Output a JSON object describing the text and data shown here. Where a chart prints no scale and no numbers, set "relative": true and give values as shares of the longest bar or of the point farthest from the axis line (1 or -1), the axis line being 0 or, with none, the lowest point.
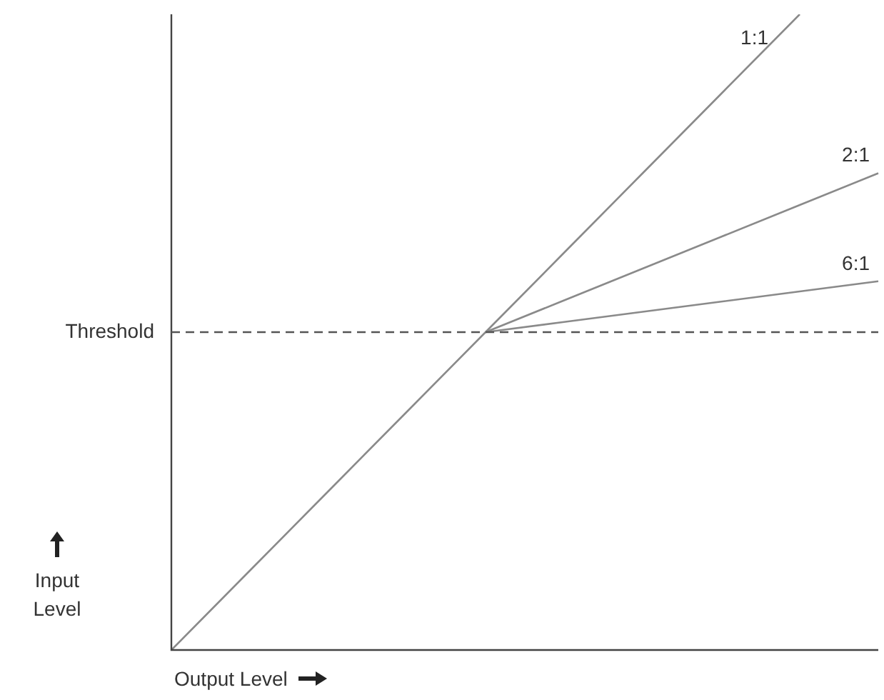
{
  "chart_data": {
    "type": "line",
    "relative": true,
    "xlabel": "Output Level",
    "ylabel": "Input Level",
    "line_style": "solid",
    "marker": "none",
    "categories": [
      null,
      null,
      null,
      null,
      null,
      null,
      null,
      null,
      null,
      null
    ],
    "series": [
      {
        "name": "1:1",
        "color": "#8a8a8a",
        "values": [
          0,
          0.125,
          0.25,
          0.375,
          0.5,
          0.625,
          0.75,
          0.875,
          1,
          null
        ]
      },
      {
        "name": "2:1",
        "color": "#8a8a8a",
        "values": [
          null,
          null,
          null,
          null,
          0.5,
          0.55,
          0.6,
          0.65,
          0.7,
          0.75
        ]
      },
      {
        "name": "6:1",
        "color": "#8a8a8a",
        "values": [
          null,
          null,
          null,
          null,
          0.5,
          0.516,
          0.532,
          0.548,
          0.564,
          0.58
        ]
      }
    ],
    "ref_lines": [
      {
        "axis": "y",
        "value": 0.5,
        "label": "Threshold",
        "line_style": "dashed",
        "color": "#555555"
      }
    ]
  }
}
